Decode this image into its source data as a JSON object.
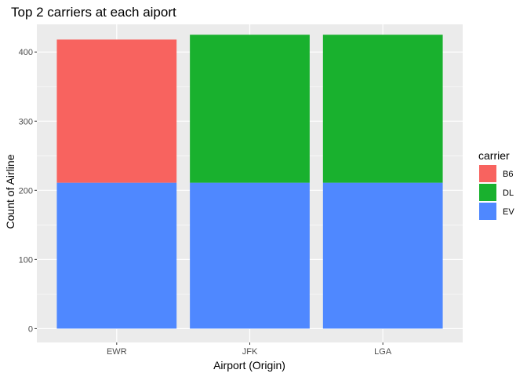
{
  "chart_data": {
    "type": "bar",
    "stacked": true,
    "title": "Top 2 carriers at each aiport",
    "xlabel": "Airport (Origin)",
    "ylabel": "Count of Airline",
    "categories": [
      "EWR",
      "JFK",
      "LGA"
    ],
    "yticks": [
      0,
      100,
      200,
      300,
      400
    ],
    "ylim": [
      -20,
      440
    ],
    "grid": true,
    "legend": {
      "title": "carrier",
      "position": "right"
    },
    "series": [
      {
        "name": "EV",
        "color": "#4F88FF",
        "values": [
          211,
          211,
          211
        ]
      },
      {
        "name": "DL",
        "color": "#19B12E",
        "values": [
          0,
          214,
          214
        ]
      },
      {
        "name": "B6",
        "color": "#F8635F",
        "values": [
          207,
          0,
          0
        ]
      }
    ],
    "legend_order": [
      "B6",
      "DL",
      "EV"
    ],
    "panel_color": "#EBEBEB",
    "grid_color": "#FFFFFF"
  }
}
